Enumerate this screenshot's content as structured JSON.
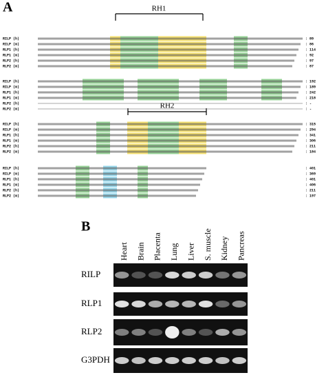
{
  "panel_a": {
    "label": "A",
    "domains": [
      "RH1",
      "RH2"
    ],
    "rows": [
      "RILP (h)",
      "RILP (m)",
      "RLP1 (h)",
      "RLP1 (m)",
      "RLP2 (h)",
      "RLP2 (m)"
    ],
    "blocks": [
      {
        "ends": [
          ": 89",
          ": 86",
          ": 114",
          ": 92",
          ": 97",
          ": 87"
        ]
      },
      {
        "ends": [
          ": 192",
          ": 189",
          ": 242",
          ": 218",
          ": -",
          ": -"
        ]
      },
      {
        "ends": [
          ": 315",
          ": 294",
          ": 341",
          ": 306",
          ": 211",
          ": 184"
        ]
      },
      {
        "ends": [
          ": 401",
          ": 369",
          ": 401",
          ": 406",
          ": 211",
          ": 197"
        ]
      }
    ]
  },
  "panel_b": {
    "label": "B",
    "lanes": [
      "Heart",
      "Brain",
      "Placenta",
      "Lung",
      "Liver",
      "S. muscle",
      "Kidney",
      "Pancreas"
    ],
    "genes": [
      "RILP",
      "RLP1",
      "RLP2",
      "G3PDH"
    ]
  }
}
